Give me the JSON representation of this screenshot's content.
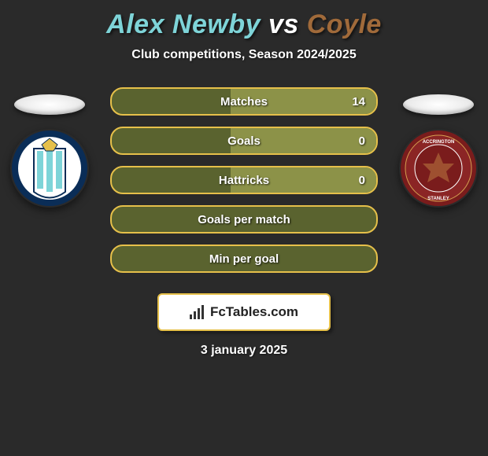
{
  "title": {
    "player1": "Alex Newby",
    "vs": "vs",
    "player2": "Coyle",
    "player1_color": "#7ed4d8",
    "vs_color": "#ffffff",
    "player2_color": "#a06a3a"
  },
  "subtitle": "Club competitions, Season 2024/2025",
  "colors": {
    "accent1": "#7ed4d8",
    "accent2": "#a06a3a",
    "bar_border": "#e6c04a",
    "bar_bg": "#5a632f",
    "bar_fill": "#8c9248"
  },
  "bars": [
    {
      "label": "Matches",
      "left": "",
      "right": "14",
      "fill_pct": 55
    },
    {
      "label": "Goals",
      "left": "",
      "right": "0",
      "fill_pct": 55
    },
    {
      "label": "Hattricks",
      "left": "",
      "right": "0",
      "fill_pct": 55
    },
    {
      "label": "Goals per match",
      "left": "",
      "right": "",
      "fill_pct": 0
    },
    {
      "label": "Min per goal",
      "left": "",
      "right": "",
      "fill_pct": 0
    }
  ],
  "brand": {
    "text": "FcTables.com",
    "border_color": "#e6c04a"
  },
  "date": "3 january 2025",
  "badges": {
    "left": {
      "outer": "#0a2d57",
      "inner": "#ffffff",
      "stripes": "#7ed4d8"
    },
    "right": {
      "outer": "#7a1c1c",
      "inner": "#8b2525",
      "detail": "#d4a050"
    }
  }
}
